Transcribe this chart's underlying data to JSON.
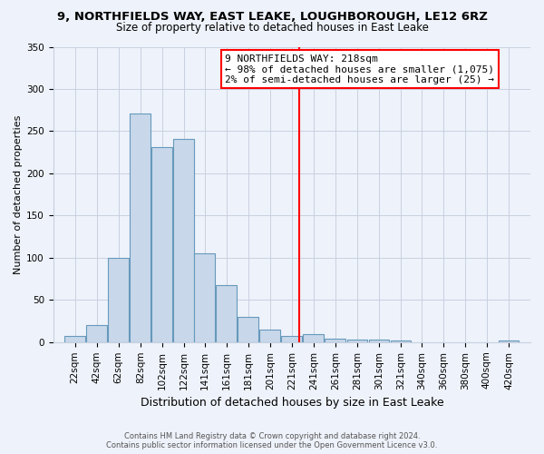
{
  "title1": "9, NORTHFIELDS WAY, EAST LEAKE, LOUGHBOROUGH, LE12 6RZ",
  "title2": "Size of property relative to detached houses in East Leake",
  "xlabel": "Distribution of detached houses by size in East Leake",
  "ylabel": "Number of detached properties",
  "bar_labels": [
    "22sqm",
    "42sqm",
    "62sqm",
    "82sqm",
    "102sqm",
    "122sqm",
    "141sqm",
    "161sqm",
    "181sqm",
    "201sqm",
    "221sqm",
    "241sqm",
    "261sqm",
    "281sqm",
    "301sqm",
    "321sqm",
    "340sqm",
    "360sqm",
    "380sqm",
    "400sqm",
    "420sqm"
  ],
  "bar_values": [
    7,
    20,
    100,
    271,
    231,
    241,
    105,
    68,
    30,
    15,
    7,
    10,
    4,
    3,
    3,
    2,
    0,
    0,
    0,
    0,
    2
  ],
  "bar_color": "#c8d8ea",
  "bar_edgecolor": "#6699bb",
  "vline_x": 218,
  "vline_color": "red",
  "annotation_title": "9 NORTHFIELDS WAY: 218sqm",
  "annotation_line1": "← 98% of detached houses are smaller (1,075)",
  "annotation_line2": "2% of semi-detached houses are larger (25) →",
  "annotation_box_edgecolor": "red",
  "annotation_box_facecolor": "white",
  "ylim": [
    0,
    350
  ],
  "yticks": [
    0,
    50,
    100,
    150,
    200,
    250,
    300,
    350
  ],
  "footer1": "Contains HM Land Registry data © Crown copyright and database right 2024.",
  "footer2": "Contains public sector information licensed under the Open Government Licence v3.0.",
  "bg_color": "#eef2fa",
  "grid_color": "#c8d0e0",
  "title1_fontsize": 9.5,
  "title2_fontsize": 8.5,
  "xlabel_fontsize": 9,
  "ylabel_fontsize": 8,
  "tick_fontsize": 7.5,
  "ann_fontsize": 8
}
